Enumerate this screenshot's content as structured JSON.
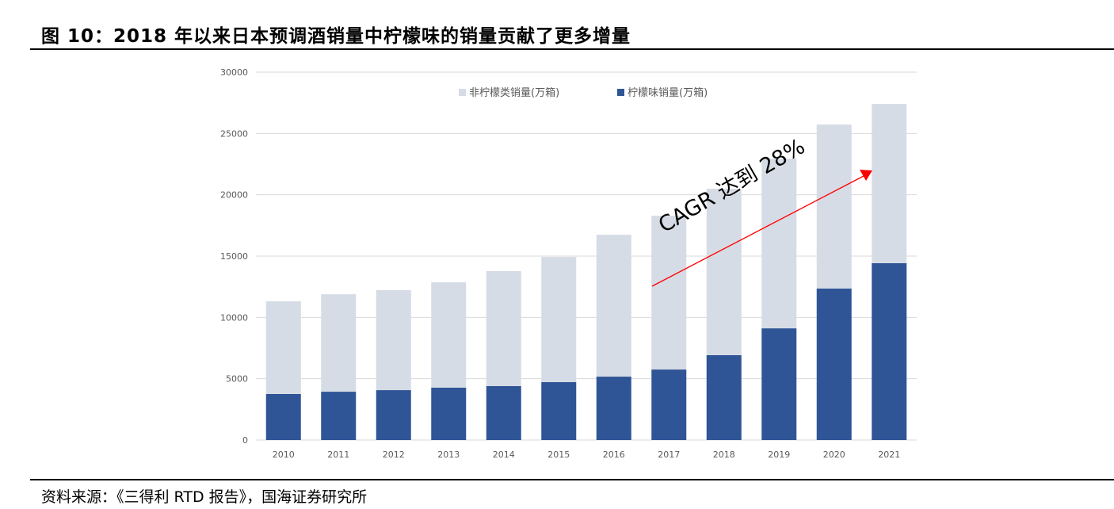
{
  "title": "图 10：2018 年以来日本预调酒销量中柠檬味的销量贡献了更多增量",
  "source": "资料来源：《三得利 RTD 报告》，国海证券研究所",
  "chart_data": {
    "type": "bar",
    "stacked": true,
    "categories": [
      "2010",
      "2011",
      "2012",
      "2013",
      "2014",
      "2015",
      "2016",
      "2017",
      "2018",
      "2019",
      "2020",
      "2021"
    ],
    "series": [
      {
        "name": "柠檬味销量(万箱)",
        "color": "#2F5597",
        "values": [
          3750,
          3940,
          4070,
          4270,
          4400,
          4720,
          5170,
          5750,
          6920,
          9110,
          12350,
          14420
        ]
      },
      {
        "name": "非柠檬类销量(万箱)",
        "color": "#D6DCE5",
        "values": [
          7560,
          7950,
          8150,
          8590,
          9370,
          10210,
          11570,
          12540,
          13570,
          13840,
          13380,
          12990
        ]
      }
    ],
    "ylim": [
      0,
      30000
    ],
    "yticks": [
      "0",
      "5000",
      "10000",
      "15000",
      "20000",
      "25000",
      "30000"
    ],
    "grid": true,
    "legend": "top",
    "annotation": "CAGR 达到 28%",
    "arrow_color": "#FF0000"
  }
}
